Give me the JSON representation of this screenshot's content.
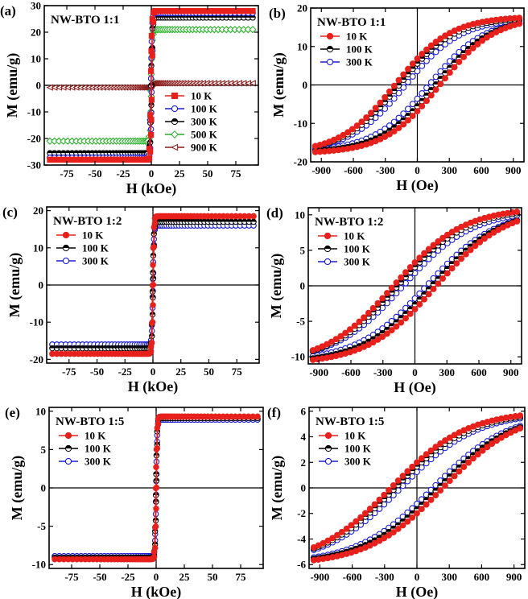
{
  "figure": {
    "x_unit_full": "kOe",
    "x_unit_zoom": "Oe"
  },
  "chart_data": [
    {
      "panel": "a",
      "panel_label": "(a)",
      "type": "line",
      "title": "NW-BTO 1:1",
      "xlabel": "H (kOe)",
      "ylabel": "M (emu/g)",
      "xlim": [
        -95,
        95
      ],
      "ylim": [
        -30,
        30
      ],
      "xticks": [
        -75,
        -50,
        -25,
        0,
        25,
        50,
        75
      ],
      "yticks": [
        -30,
        -20,
        -10,
        0,
        10,
        20,
        30
      ],
      "legend_position": "bottom-right",
      "series": [
        {
          "name": "10 K",
          "color": "#e8201c",
          "marker": "square",
          "filled": true,
          "ms": 28.0,
          "hc": 0.5
        },
        {
          "name": "100 K",
          "color": "#1c1cd9",
          "marker": "circle",
          "filled": false,
          "ms": 27.2,
          "hc": 0.4
        },
        {
          "name": "300 K",
          "color": "#000000",
          "marker": "circle-half",
          "filled": true,
          "ms": 25.5,
          "hc": 0.3
        },
        {
          "name": "500 K",
          "color": "#22b022",
          "marker": "diamond",
          "filled": false,
          "ms": 21.0,
          "hc": 0.2
        },
        {
          "name": "900 K",
          "color": "#8b1a1a",
          "marker": "triangle-left",
          "filled": false,
          "ms": 0.8,
          "hc": 0
        }
      ]
    },
    {
      "panel": "b",
      "panel_label": "(b)",
      "type": "line",
      "title": "NW-BTO 1:1",
      "xlabel": "H (Oe)",
      "ylabel": "M (emu/g)",
      "xlim": [
        -1000,
        1000
      ],
      "ylim": [
        -20,
        20
      ],
      "xticks": [
        -900,
        -600,
        -300,
        0,
        300,
        600,
        900
      ],
      "yticks": [
        -20,
        -10,
        0,
        10,
        20
      ],
      "legend_position": "top-left",
      "series": [
        {
          "name": "10 K",
          "color": "#e8201c",
          "marker": "circle",
          "filled": true,
          "ms": 17.5,
          "hc": 210,
          "hk": 520
        },
        {
          "name": "100 K",
          "color": "#000000",
          "marker": "circle-half",
          "filled": true,
          "ms": 17.2,
          "hc": 170,
          "hk": 520
        },
        {
          "name": "300 K",
          "color": "#1c1cd9",
          "marker": "circle",
          "filled": false,
          "ms": 16.8,
          "hc": 110,
          "hk": 520
        }
      ]
    },
    {
      "panel": "c",
      "panel_label": "(c)",
      "type": "line",
      "title": "NW-BTO 1:2",
      "xlabel": "H (kOe)",
      "ylabel": "M (emu/g)",
      "xlim": [
        -95,
        95
      ],
      "ylim": [
        -21,
        21
      ],
      "xticks": [
        -75,
        -50,
        -25,
        0,
        25,
        50,
        75
      ],
      "yticks": [
        -20,
        -10,
        0,
        10,
        20
      ],
      "legend_position": "top-left",
      "series": [
        {
          "name": "10 K",
          "color": "#e8201c",
          "marker": "circle",
          "filled": true,
          "ms": 18.5,
          "hc": 0.3
        },
        {
          "name": "100 K",
          "color": "#000000",
          "marker": "circle-half",
          "filled": true,
          "ms": 17.0,
          "hc": 0.2
        },
        {
          "name": "300 K",
          "color": "#1c1cd9",
          "marker": "circle",
          "filled": false,
          "ms": 16.0,
          "hc": 0.1
        }
      ]
    },
    {
      "panel": "d",
      "panel_label": "(d)",
      "type": "line",
      "title": "NW-BTO 1:2",
      "xlabel": "H (Oe)",
      "ylabel": "M (emu/g)",
      "xlim": [
        -1000,
        1000
      ],
      "ylim": [
        -11,
        11
      ],
      "xticks": [
        -900,
        -600,
        -300,
        0,
        300,
        600,
        900
      ],
      "yticks": [
        -10,
        -5,
        0,
        5,
        10
      ],
      "legend_position": "top-left",
      "series": [
        {
          "name": "10 K",
          "color": "#e8201c",
          "marker": "circle",
          "filled": true,
          "ms": 10.5,
          "hc": 200,
          "hk": 650
        },
        {
          "name": "100 K",
          "color": "#000000",
          "marker": "circle-half",
          "filled": true,
          "ms": 10.3,
          "hc": 160,
          "hk": 650
        },
        {
          "name": "300 K",
          "color": "#1c1cd9",
          "marker": "circle",
          "filled": false,
          "ms": 10.0,
          "hc": 110,
          "hk": 650
        }
      ]
    },
    {
      "panel": "e",
      "panel_label": "(e)",
      "type": "line",
      "title": "NW-BTO 1:5",
      "xlabel": "H (kOe)",
      "ylabel": "M (emu/g)",
      "xlim": [
        -95,
        95
      ],
      "ylim": [
        -10.5,
        10.5
      ],
      "xticks": [
        -75,
        -50,
        -25,
        0,
        25,
        50,
        75
      ],
      "yticks": [
        -10,
        -5,
        0,
        5,
        10
      ],
      "legend_position": "top-left",
      "series": [
        {
          "name": "10 K",
          "color": "#e8201c",
          "marker": "circle",
          "filled": true,
          "ms": 9.3,
          "hc": 0.3
        },
        {
          "name": "100 K",
          "color": "#000000",
          "marker": "circle-half",
          "filled": true,
          "ms": 9.1,
          "hc": 0.2
        },
        {
          "name": "300 K",
          "color": "#1c1cd9",
          "marker": "circle",
          "filled": false,
          "ms": 8.9,
          "hc": 0.1
        }
      ]
    },
    {
      "panel": "f",
      "panel_label": "(f)",
      "type": "line",
      "title": "NW-BTO 1:5",
      "xlabel": "H (Oe)",
      "ylabel": "M (emu/g)",
      "xlim": [
        -1000,
        1000
      ],
      "ylim": [
        -6.3,
        6.3
      ],
      "xticks": [
        -900,
        -600,
        -300,
        0,
        300,
        600,
        900
      ],
      "yticks": [
        -6,
        -4,
        -2,
        0,
        2,
        4,
        6
      ],
      "legend_position": "top-left",
      "series": [
        {
          "name": "10 K",
          "color": "#e8201c",
          "marker": "circle",
          "filled": true,
          "ms": 5.7,
          "hc": 240,
          "hk": 700
        },
        {
          "name": "100 K",
          "color": "#000000",
          "marker": "circle-half",
          "filled": true,
          "ms": 5.6,
          "hc": 200,
          "hk": 700
        },
        {
          "name": "300 K",
          "color": "#1c1cd9",
          "marker": "circle",
          "filled": false,
          "ms": 5.5,
          "hc": 150,
          "hk": 700
        }
      ]
    }
  ]
}
